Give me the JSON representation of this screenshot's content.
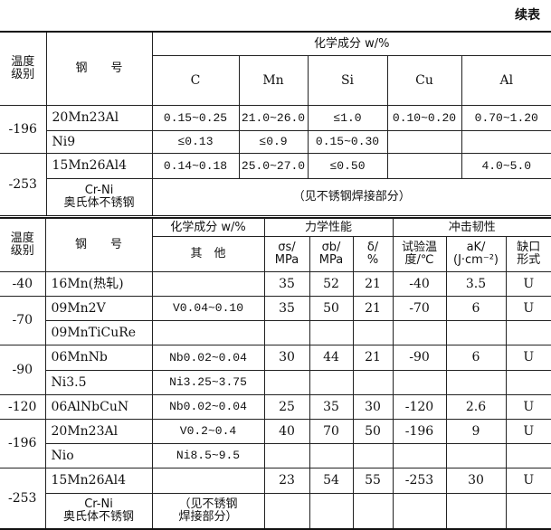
{
  "continued_label": "续表",
  "top_table": {
    "headers": {
      "temp_grade": "温度\n级别",
      "steel_grade": "钢　　号",
      "chem_group": "化学成分 w/%",
      "elements": [
        "C",
        "Mn",
        "Si",
        "Cu",
        "Al"
      ]
    },
    "rows": [
      {
        "temp": "-196",
        "steel": "20Mn23Al",
        "values": [
          "0.15~0.25",
          "21.0~26.0",
          "≤1.0",
          "0.10~0.20",
          "0.70~1.20"
        ]
      },
      {
        "temp": "",
        "steel": "Ni9",
        "values": [
          "≤0.13",
          "≤0.9",
          "0.15~0.30",
          "",
          ""
        ]
      },
      {
        "temp": "-253",
        "steel": "15Mn26Al4",
        "values": [
          "0.14~0.18",
          "25.0~27.0",
          "≤0.50",
          "",
          "4.0~5.0"
        ]
      },
      {
        "temp": "",
        "steel": "Cr-Ni\n奥氏体不锈钢",
        "note": "（见不锈钢焊接部分）"
      }
    ]
  },
  "bottom_table": {
    "headers": {
      "temp_grade": "温度\n级别",
      "steel_grade": "钢　　号",
      "chem_group": "化学成分 w/%",
      "chem_other": "其　他",
      "mech_group": "力学性能",
      "sigma_s": "σs/\nMPa",
      "sigma_b": "σb/\nMPa",
      "delta": "δ/\n%",
      "impact_group": "冲击韧性",
      "test_temp": "试验温\n度/℃",
      "ak": "aK/\n(J·cm⁻²)",
      "notch": "缺口\n形式"
    },
    "rows": [
      {
        "temp": "-40",
        "steel": "16Mn(热轧)",
        "other": "",
        "ss": "35",
        "sb": "52",
        "d": "21",
        "tt": "-40",
        "ak": "3.5",
        "notch": "U"
      },
      {
        "temp": "-70",
        "steel": "09Mn2V",
        "other": "V0.04~0.10",
        "ss": "35",
        "sb": "50",
        "d": "21",
        "tt": "-70",
        "ak": "6",
        "notch": "U"
      },
      {
        "temp": "",
        "steel": "09MnTiCuRe",
        "other": "",
        "ss": "",
        "sb": "",
        "d": "",
        "tt": "",
        "ak": "",
        "notch": ""
      },
      {
        "temp": "-90",
        "steel": "06MnNb",
        "other": "Nb0.02~0.04",
        "ss": "30",
        "sb": "44",
        "d": "21",
        "tt": "-90",
        "ak": "6",
        "notch": "U"
      },
      {
        "temp": "",
        "steel": "Ni3.5",
        "other": "Ni3.25~3.75",
        "ss": "",
        "sb": "",
        "d": "",
        "tt": "",
        "ak": "",
        "notch": ""
      },
      {
        "temp": "-120",
        "steel": "06AlNbCuN",
        "other": "Nb0.02~0.04",
        "ss": "25",
        "sb": "35",
        "d": "30",
        "tt": "-120",
        "ak": "2.6",
        "notch": "U"
      },
      {
        "temp": "-196",
        "steel": "20Mn23Al",
        "other": "V0.2~0.4",
        "ss": "40",
        "sb": "70",
        "d": "50",
        "tt": "-196",
        "ak": "9",
        "notch": "U"
      },
      {
        "temp": "",
        "steel": "Nio",
        "other": "Ni8.5~9.5",
        "ss": "",
        "sb": "",
        "d": "",
        "tt": "",
        "ak": "",
        "notch": ""
      },
      {
        "temp": "-253",
        "steel": "15Mn26Al4",
        "other": "",
        "ss": "23",
        "sb": "54",
        "d": "55",
        "tt": "-253",
        "ak": "30",
        "notch": "U"
      },
      {
        "temp": "",
        "steel": "Cr-Ni\n奥氏体不锈钢",
        "other": "（见不锈钢\n焊接部分）",
        "ss": "",
        "sb": "",
        "d": "",
        "tt": "",
        "ak": "",
        "notch": ""
      }
    ]
  }
}
